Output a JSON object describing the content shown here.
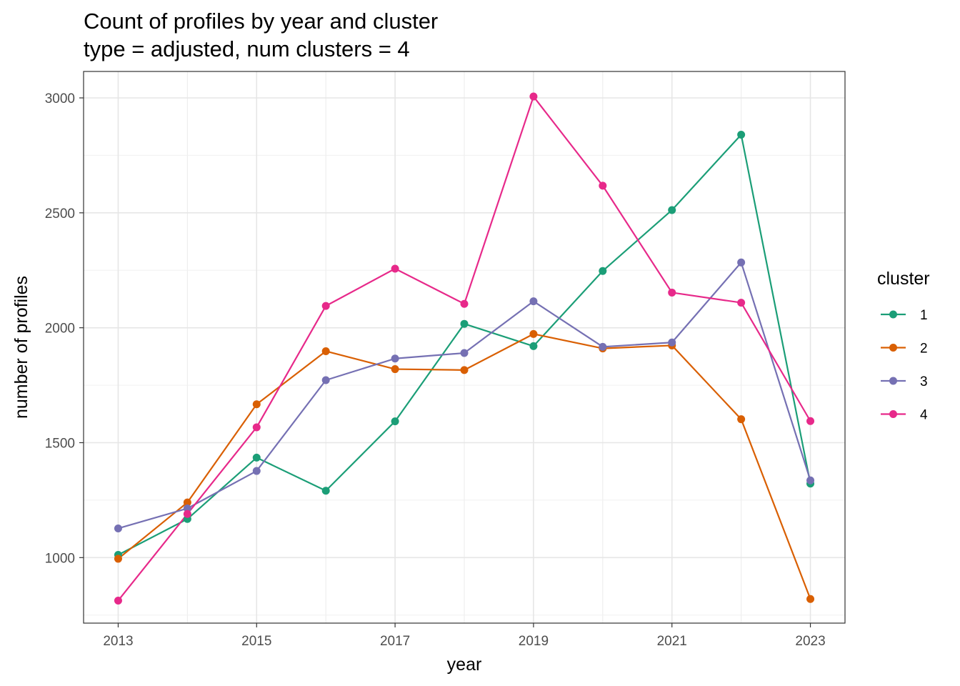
{
  "chart_data": {
    "type": "line",
    "title": "Count of profiles by year and cluster",
    "subtitle": "type = adjusted, num clusters = 4",
    "xlabel": "year",
    "ylabel": "number of profiles",
    "x": [
      2013,
      2014,
      2015,
      2016,
      2017,
      2018,
      2019,
      2020,
      2021,
      2022,
      2023
    ],
    "xticks": [
      "2013",
      "2015",
      "2017",
      "2019",
      "2021",
      "2023"
    ],
    "yticks": [
      "1000",
      "1500",
      "2000",
      "2500",
      "3000"
    ],
    "xlim": [
      2012.5,
      2023.5
    ],
    "ylim": [
      715,
      3115
    ],
    "grid": true,
    "legend": {
      "title": "cluster",
      "position": "right"
    },
    "series": [
      {
        "name": "1",
        "color": "#1b9e77",
        "values": [
          1012,
          1168,
          1435,
          1291,
          1593,
          2017,
          1920,
          2247,
          2512,
          2840,
          1322
        ]
      },
      {
        "name": "2",
        "color": "#d95f02",
        "values": [
          995,
          1240,
          1667,
          1898,
          1820,
          1816,
          1973,
          1910,
          1923,
          1602,
          820
        ]
      },
      {
        "name": "3",
        "color": "#7570b3",
        "values": [
          1127,
          1214,
          1377,
          1772,
          1866,
          1890,
          2115,
          1917,
          1936,
          2284,
          1336
        ]
      },
      {
        "name": "4",
        "color": "#e7298a",
        "values": [
          813,
          1190,
          1567,
          2095,
          2257,
          2104,
          3006,
          2618,
          2153,
          2109,
          1594
        ]
      }
    ]
  }
}
